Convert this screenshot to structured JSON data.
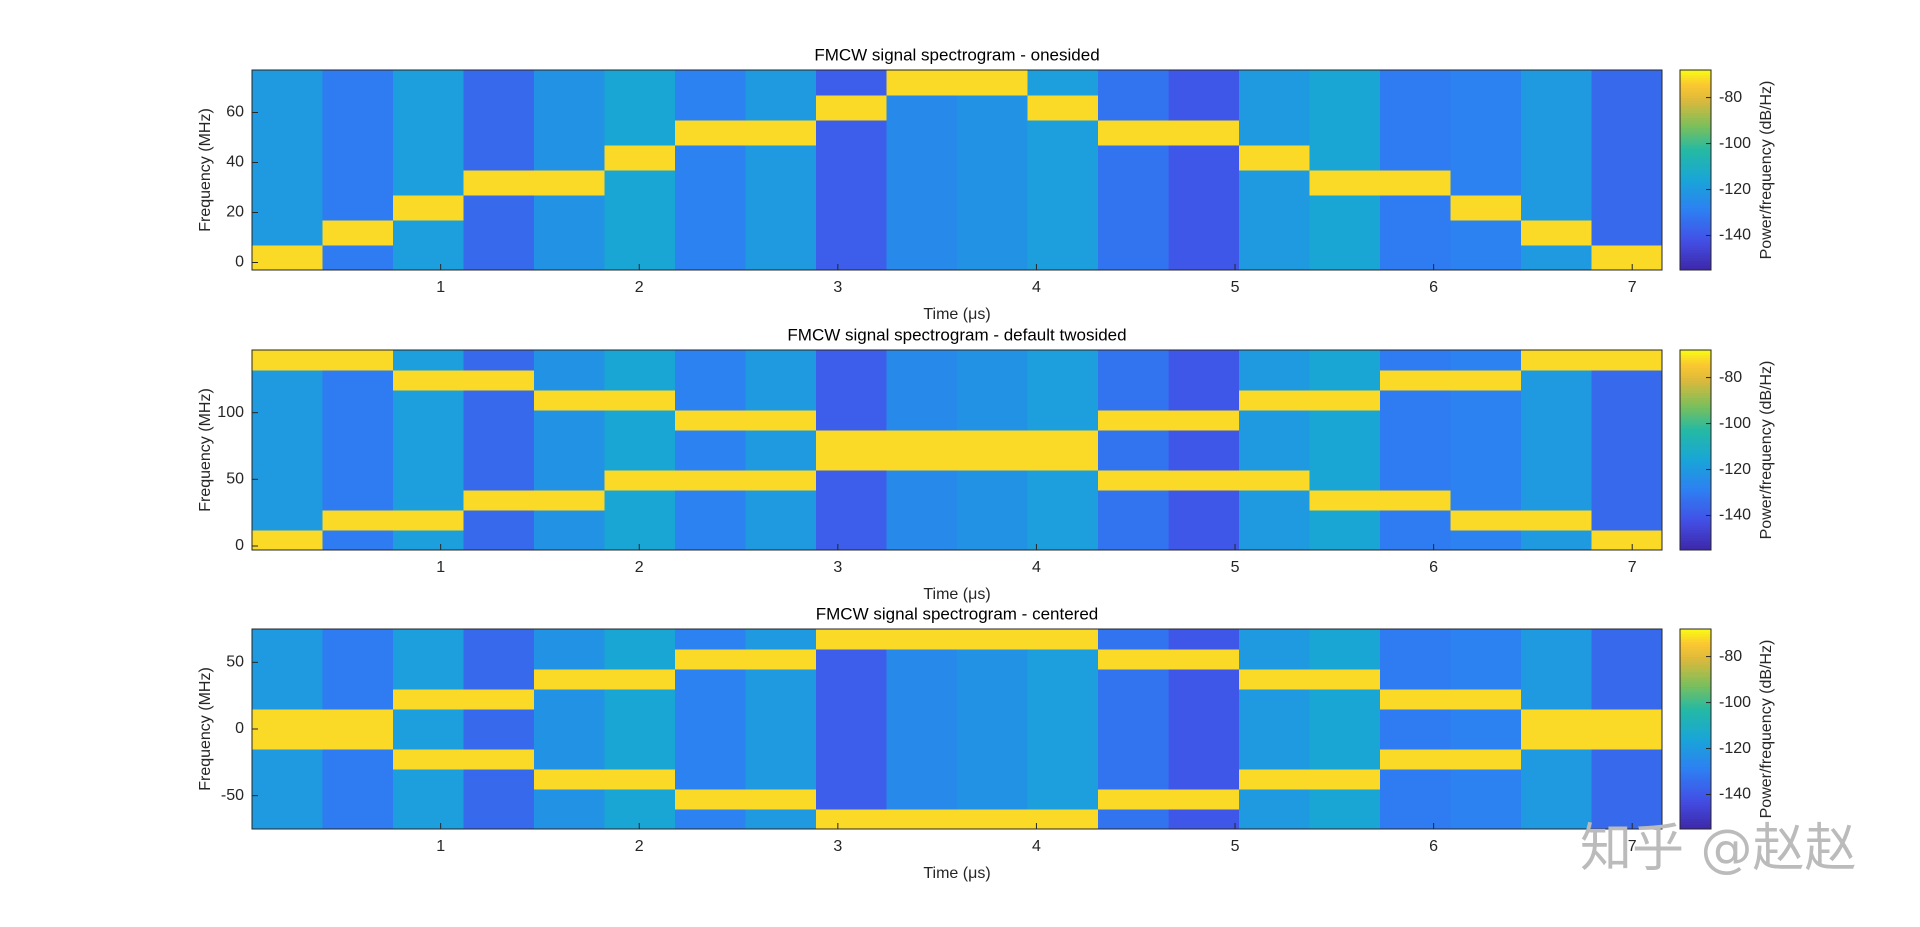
{
  "chart_data": [
    {
      "type": "heatmap",
      "title": "FMCW signal spectrogram - onesided",
      "xlabel": "Time (μs)",
      "ylabel": "Frequency (MHz)",
      "colorbar_label": "Power/frequency (dB/Hz)",
      "colormap": "parula",
      "x": [
        0.23,
        0.58,
        0.94,
        1.29,
        1.65,
        2.0,
        2.36,
        2.71,
        3.07,
        3.42,
        3.78,
        4.13,
        4.49,
        4.84,
        5.2,
        5.55,
        5.91,
        6.26,
        6.62,
        6.97
      ],
      "y": [
        2,
        12,
        22,
        32,
        42,
        52,
        62,
        72
      ],
      "values": [
        [
          -72,
          -130,
          -118,
          -135,
          -122,
          -115,
          -128,
          -120,
          -138,
          -125,
          -122,
          -118,
          -132,
          -140,
          -120,
          -115,
          -130,
          -128,
          -120,
          -72
        ],
        [
          -120,
          -72,
          -118,
          -135,
          -122,
          -115,
          -128,
          -120,
          -138,
          -125,
          -122,
          -118,
          -132,
          -140,
          -120,
          -115,
          -130,
          -128,
          -72,
          -135
        ],
        [
          -120,
          -130,
          -72,
          -135,
          -122,
          -115,
          -128,
          -120,
          -138,
          -125,
          -122,
          -118,
          -132,
          -140,
          -120,
          -115,
          -130,
          -72,
          -120,
          -135
        ],
        [
          -120,
          -130,
          -118,
          -72,
          -72,
          -115,
          -128,
          -120,
          -138,
          -125,
          -122,
          -118,
          -132,
          -140,
          -120,
          -72,
          -72,
          -128,
          -120,
          -135
        ],
        [
          -120,
          -130,
          -118,
          -135,
          -122,
          -72,
          -128,
          -120,
          -138,
          -125,
          -122,
          -118,
          -132,
          -140,
          -72,
          -115,
          -130,
          -128,
          -120,
          -135
        ],
        [
          -120,
          -130,
          -118,
          -135,
          -122,
          -115,
          -72,
          -72,
          -138,
          -125,
          -122,
          -118,
          -72,
          -72,
          -120,
          -115,
          -130,
          -128,
          -120,
          -135
        ],
        [
          -120,
          -130,
          -118,
          -135,
          -122,
          -115,
          -128,
          -120,
          -72,
          -125,
          -122,
          -72,
          -132,
          -140,
          -120,
          -115,
          -130,
          -128,
          -120,
          -135
        ],
        [
          -120,
          -130,
          -118,
          -135,
          -122,
          -115,
          -128,
          -120,
          -138,
          -72,
          -72,
          -118,
          -132,
          -140,
          -120,
          -115,
          -130,
          -128,
          -120,
          -135
        ]
      ],
      "xlim": [
        0.05,
        7.15
      ],
      "ylim": [
        -3,
        77
      ],
      "xticks": [
        1,
        2,
        3,
        4,
        5,
        6,
        7
      ],
      "yticks": [
        0,
        20,
        40,
        60
      ],
      "clim": [
        -155,
        -68
      ],
      "cticks": [
        -140,
        -120,
        -100,
        -80
      ]
    },
    {
      "type": "heatmap",
      "title": "FMCW signal spectrogram - default twosided",
      "xlabel": "Time (μs)",
      "ylabel": "Frequency (MHz)",
      "colorbar_label": "Power/frequency (dB/Hz)",
      "colormap": "parula",
      "x": [
        0.23,
        0.58,
        0.94,
        1.29,
        1.65,
        2.0,
        2.36,
        2.71,
        3.07,
        3.42,
        3.78,
        4.13,
        4.49,
        4.84,
        5.2,
        5.55,
        5.91,
        6.26,
        6.62,
        6.97
      ],
      "y": [
        4.5,
        19.5,
        34.5,
        49.5,
        64.5,
        79.5,
        94.5,
        109.5,
        124.5,
        139.5
      ],
      "values": [
        [
          -72,
          -130,
          -118,
          -135,
          -122,
          -115,
          -128,
          -120,
          -138,
          -125,
          -122,
          -118,
          -132,
          -140,
          -120,
          -115,
          -130,
          -128,
          -120,
          -72
        ],
        [
          -120,
          -72,
          -72,
          -135,
          -122,
          -115,
          -128,
          -120,
          -138,
          -125,
          -122,
          -118,
          -132,
          -140,
          -120,
          -115,
          -130,
          -72,
          -72,
          -135
        ],
        [
          -120,
          -130,
          -118,
          -72,
          -72,
          -115,
          -128,
          -120,
          -138,
          -125,
          -122,
          -118,
          -132,
          -140,
          -120,
          -72,
          -72,
          -128,
          -120,
          -135
        ],
        [
          -120,
          -130,
          -118,
          -135,
          -122,
          -72,
          -72,
          -72,
          -138,
          -125,
          -122,
          -118,
          -72,
          -72,
          -72,
          -115,
          -130,
          -128,
          -120,
          -135
        ],
        [
          -120,
          -130,
          -118,
          -135,
          -122,
          -115,
          -128,
          -120,
          -72,
          -72,
          -72,
          -72,
          -132,
          -140,
          -120,
          -115,
          -130,
          -128,
          -120,
          -135
        ],
        [
          -120,
          -130,
          -118,
          -135,
          -122,
          -115,
          -128,
          -120,
          -72,
          -72,
          -72,
          -72,
          -132,
          -140,
          -120,
          -115,
          -130,
          -128,
          -120,
          -135
        ],
        [
          -120,
          -130,
          -118,
          -135,
          -122,
          -115,
          -72,
          -72,
          -138,
          -125,
          -122,
          -118,
          -72,
          -72,
          -120,
          -115,
          -130,
          -128,
          -120,
          -135
        ],
        [
          -120,
          -130,
          -118,
          -135,
          -72,
          -72,
          -128,
          -120,
          -138,
          -125,
          -122,
          -118,
          -132,
          -140,
          -72,
          -72,
          -130,
          -128,
          -120,
          -135
        ],
        [
          -120,
          -130,
          -72,
          -72,
          -122,
          -115,
          -128,
          -120,
          -138,
          -125,
          -122,
          -118,
          -132,
          -140,
          -120,
          -115,
          -72,
          -72,
          -120,
          -135
        ],
        [
          -72,
          -72,
          -118,
          -135,
          -122,
          -115,
          -128,
          -120,
          -138,
          -125,
          -122,
          -118,
          -132,
          -140,
          -120,
          -115,
          -130,
          -128,
          -72,
          -72
        ]
      ],
      "xlim": [
        0.05,
        7.15
      ],
      "ylim": [
        -3,
        147
      ],
      "xticks": [
        1,
        2,
        3,
        4,
        5,
        6,
        7
      ],
      "yticks": [
        0,
        50,
        100
      ],
      "clim": [
        -155,
        -68
      ],
      "cticks": [
        -140,
        -120,
        -100,
        -80
      ]
    },
    {
      "type": "heatmap",
      "title": "FMCW signal spectrogram - centered",
      "xlabel": "Time (μs)",
      "ylabel": "Frequency (MHz)",
      "colorbar_label": "Power/frequency (dB/Hz)",
      "colormap": "parula",
      "x": [
        0.23,
        0.58,
        0.94,
        1.29,
        1.65,
        2.0,
        2.36,
        2.71,
        3.07,
        3.42,
        3.78,
        4.13,
        4.49,
        4.84,
        5.2,
        5.55,
        5.91,
        6.26,
        6.62,
        6.97
      ],
      "y": [
        -67.5,
        -52.5,
        -37.5,
        -22.5,
        -7.5,
        7.5,
        22.5,
        37.5,
        52.5,
        67.5
      ],
      "values": [
        [
          -120,
          -130,
          -118,
          -135,
          -122,
          -115,
          -128,
          -120,
          -72,
          -72,
          -72,
          -72,
          -132,
          -140,
          -120,
          -115,
          -130,
          -128,
          -120,
          -135
        ],
        [
          -120,
          -130,
          -118,
          -135,
          -122,
          -115,
          -72,
          -72,
          -138,
          -125,
          -122,
          -118,
          -72,
          -72,
          -120,
          -115,
          -130,
          -128,
          -120,
          -135
        ],
        [
          -120,
          -130,
          -118,
          -135,
          -72,
          -72,
          -128,
          -120,
          -138,
          -125,
          -122,
          -118,
          -132,
          -140,
          -72,
          -72,
          -130,
          -128,
          -120,
          -135
        ],
        [
          -120,
          -130,
          -72,
          -72,
          -122,
          -115,
          -128,
          -120,
          -138,
          -125,
          -122,
          -118,
          -132,
          -140,
          -120,
          -115,
          -72,
          -72,
          -120,
          -135
        ],
        [
          -72,
          -72,
          -118,
          -135,
          -122,
          -115,
          -128,
          -120,
          -138,
          -125,
          -122,
          -118,
          -132,
          -140,
          -120,
          -115,
          -130,
          -128,
          -72,
          -72
        ],
        [
          -72,
          -72,
          -118,
          -135,
          -122,
          -115,
          -128,
          -120,
          -138,
          -125,
          -122,
          -118,
          -132,
          -140,
          -120,
          -115,
          -130,
          -128,
          -72,
          -72
        ],
        [
          -120,
          -130,
          -72,
          -72,
          -122,
          -115,
          -128,
          -120,
          -138,
          -125,
          -122,
          -118,
          -132,
          -140,
          -120,
          -115,
          -72,
          -72,
          -120,
          -135
        ],
        [
          -120,
          -130,
          -118,
          -135,
          -72,
          -72,
          -128,
          -120,
          -138,
          -125,
          -122,
          -118,
          -132,
          -140,
          -72,
          -72,
          -130,
          -128,
          -120,
          -135
        ],
        [
          -120,
          -130,
          -118,
          -135,
          -122,
          -115,
          -72,
          -72,
          -138,
          -125,
          -122,
          -118,
          -72,
          -72,
          -120,
          -115,
          -130,
          -128,
          -120,
          -135
        ],
        [
          -120,
          -130,
          -118,
          -135,
          -122,
          -115,
          -128,
          -120,
          -72,
          -72,
          -72,
          -72,
          -132,
          -140,
          -120,
          -115,
          -130,
          -128,
          -120,
          -135
        ]
      ],
      "xlim": [
        0.05,
        7.15
      ],
      "ylim": [
        -75,
        75
      ],
      "xticks": [
        1,
        2,
        3,
        4,
        5,
        6,
        7
      ],
      "yticks": [
        -50,
        0,
        50
      ],
      "clim": [
        -155,
        -68
      ],
      "cticks": [
        -140,
        -120,
        -100,
        -80
      ]
    }
  ],
  "watermark": "知乎 @赵赵"
}
